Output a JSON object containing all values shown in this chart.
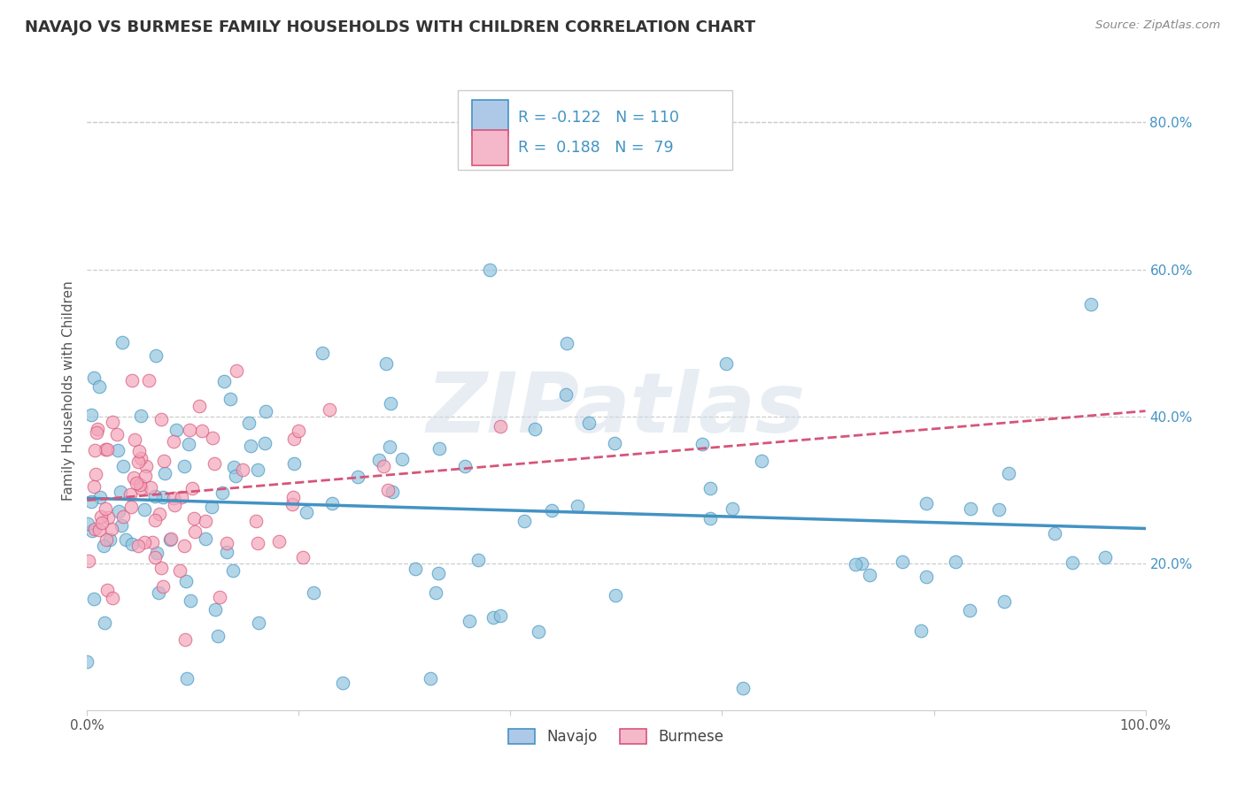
{
  "title": "NAVAJO VS BURMESE FAMILY HOUSEHOLDS WITH CHILDREN CORRELATION CHART",
  "source_text": "Source: ZipAtlas.com",
  "ylabel": "Family Households with Children",
  "xlim": [
    0.0,
    1.0
  ],
  "ylim": [
    0.0,
    0.87
  ],
  "xticks": [
    0.0,
    0.2,
    0.4,
    0.6,
    0.8,
    1.0
  ],
  "xticklabels": [
    "0.0%",
    "",
    "",
    "",
    "",
    "100.0%"
  ],
  "yticks": [
    0.2,
    0.4,
    0.6,
    0.8
  ],
  "yticklabels": [
    "20.0%",
    "40.0%",
    "60.0%",
    "80.0%"
  ],
  "navajo_scatter_color": "#92c5de",
  "navajo_scatter_edge": "#4393c3",
  "burmese_scatter_color": "#f4a6bb",
  "burmese_scatter_edge": "#d6557a",
  "navajo_line_color": "#4393c3",
  "burmese_line_color": "#d6557a",
  "ytick_color": "#4393c3",
  "legend_navajo_fill": "#aec9e8",
  "legend_burmese_fill": "#f5b8cb",
  "legend_navajo_edge": "#4393c3",
  "legend_burmese_edge": "#d6557a",
  "R_navajo": -0.122,
  "N_navajo": 110,
  "R_burmese": 0.188,
  "N_burmese": 79,
  "watermark": "ZIPatlas",
  "grid_color": "#cccccc",
  "background_color": "#ffffff"
}
